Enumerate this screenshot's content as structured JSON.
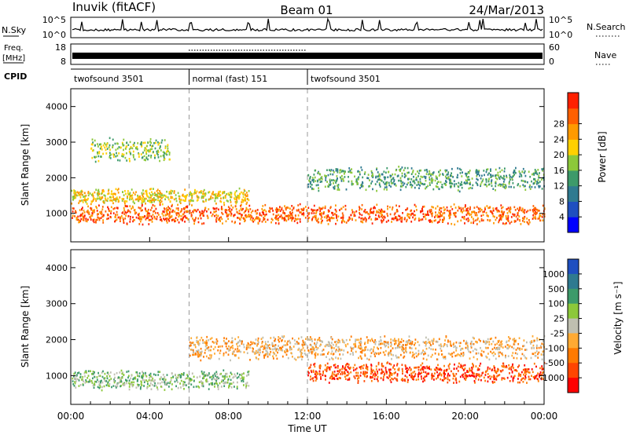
{
  "header": {
    "station": "Inuvik (fitACF)",
    "beam": "Beam 01",
    "date": "24/Mar/2013"
  },
  "noise_panel": {
    "left_label": "N.Sky",
    "right_label": "N.Search",
    "left_ticks": [
      "10^5",
      "10^0"
    ],
    "right_ticks": [
      "10^5",
      "10^0"
    ]
  },
  "freq_panel": {
    "left_label_1": "Freq.",
    "left_label_2": "[MHz]",
    "right_label": "Nave",
    "left_ticks": [
      "18",
      "8"
    ],
    "right_ticks": [
      "60",
      "0"
    ]
  },
  "cpid": {
    "label": "CPID",
    "segments": [
      {
        "label": "twofsound 3501",
        "start_hour": 0,
        "end_hour": 6
      },
      {
        "label": "normal (fast) 151",
        "start_hour": 6,
        "end_hour": 12
      },
      {
        "label": "twofsound 3501",
        "start_hour": 12,
        "end_hour": 24
      }
    ]
  },
  "chart_data": [
    {
      "type": "heatmap",
      "name": "Power",
      "ylabel": "Slant Range [km]",
      "ylim": [
        200,
        4500
      ],
      "yticks": [
        1000,
        2000,
        3000,
        4000
      ],
      "colorbar": {
        "label": "Power [dB]",
        "range": [
          0,
          32
        ],
        "ticks": [
          "4",
          "8",
          "12",
          "16",
          "20",
          "24",
          "28"
        ],
        "colors": [
          "#0000ff",
          "#1f4fc0",
          "#2f7a90",
          "#3d9a6a",
          "#8cc83a",
          "#ffd000",
          "#ff9a00",
          "#ff6000",
          "#ff2000"
        ]
      },
      "mode_change_hours": [
        6,
        12
      ],
      "echo_bands": [
        {
          "x_start": 0,
          "x_end": 24,
          "y_center": 1000,
          "y_half_width": 250,
          "level": "28"
        },
        {
          "x_start": 0,
          "x_end": 9,
          "y_center": 1500,
          "y_half_width": 200,
          "level": "20"
        },
        {
          "x_start": 12,
          "x_end": 24,
          "y_center": 2000,
          "y_half_width": 300,
          "level": "12"
        },
        {
          "x_start": 1,
          "x_end": 5,
          "y_center": 2800,
          "y_half_width": 300,
          "level": "16"
        }
      ]
    },
    {
      "type": "heatmap",
      "name": "Velocity",
      "ylabel": "Slant Range [km]",
      "ylim": [
        200,
        4500
      ],
      "yticks": [
        1000,
        2000,
        3000,
        4000
      ],
      "xlabel": "Time UT",
      "xlim": [
        0,
        24
      ],
      "xticks": [
        "00:00",
        "04:00",
        "08:00",
        "12:00",
        "16:00",
        "20:00",
        "00:00"
      ],
      "colorbar": {
        "label": "Velocity [m s⁻¹]",
        "ticks": [
          "1000",
          "500",
          "100",
          "25",
          "-25",
          "-100",
          "-500",
          "-1000"
        ],
        "colors": [
          "#1f4fc0",
          "#2f7a90",
          "#3d9a6a",
          "#8cc83a",
          "#bfbfb0",
          "#ffaa33",
          "#ff7a00",
          "#ff4500",
          "#ff0000"
        ]
      },
      "mode_change_hours": [
        6,
        12
      ],
      "echo_bands": [
        {
          "x_start": 0,
          "x_end": 9,
          "y_center": 900,
          "y_half_width": 250,
          "level": "100"
        },
        {
          "x_start": 12,
          "x_end": 24,
          "y_center": 1100,
          "y_half_width": 250,
          "level": "-500"
        },
        {
          "x_start": 6,
          "x_end": 24,
          "y_center": 1800,
          "y_half_width": 300,
          "level": "-25"
        }
      ]
    }
  ]
}
